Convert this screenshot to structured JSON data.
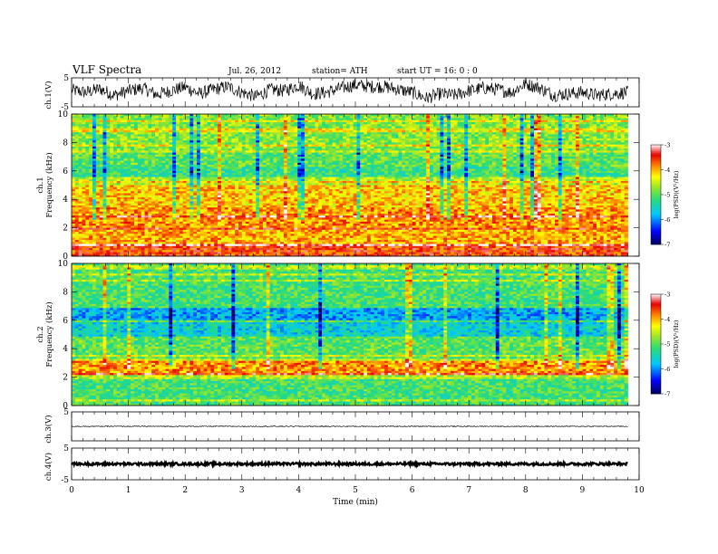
{
  "header": {
    "title": "VLF  Spectra",
    "date": "Jul.  26,  2012",
    "station": "station= ATH",
    "start": "start  UT  =    16: 0   : 0"
  },
  "chart_data": [
    {
      "type": "line",
      "name": "ch1-waveform",
      "ylabel": "ch.1(V)",
      "ylim": [
        -5,
        5
      ],
      "yticks": [
        "5",
        "-5"
      ],
      "xlim": [
        0,
        10
      ],
      "x": [
        0,
        0.25,
        0.5,
        0.75,
        1,
        1.25,
        1.5,
        1.75,
        2,
        2.25,
        2.5,
        2.75,
        3,
        3.25,
        3.5,
        3.75,
        4,
        4.25,
        4.5,
        4.75,
        5,
        5.25,
        5.5,
        5.75,
        6,
        6.25,
        6.5,
        6.75,
        7,
        7.25,
        7.5,
        7.75,
        8,
        8.25,
        8.5,
        8.75,
        9,
        9.25,
        9.5,
        9.8
      ],
      "y": [
        0.8,
        0,
        1.2,
        -1,
        0.5,
        1.5,
        -0.8,
        0.6,
        1.8,
        -0.5,
        1,
        2,
        0,
        -1.5,
        1,
        0.5,
        2.5,
        -0.5,
        0,
        1.5,
        2.5,
        2,
        2,
        1,
        0,
        -2,
        -0.5,
        -1,
        0.5,
        1.5,
        1,
        0,
        3,
        1.5,
        -1,
        -0.5,
        0,
        -1,
        -0.5,
        0
      ],
      "noise_amplitude": 2.3,
      "color": "#000000"
    },
    {
      "type": "heatmap",
      "name": "ch1-spectrogram",
      "ylabel": "ch.1\nFrequency  (kHz)",
      "xlim": [
        0,
        10
      ],
      "ylim": [
        0,
        10
      ],
      "yticks": [
        "0",
        "2",
        "4",
        "6",
        "8",
        "10"
      ],
      "data_end_min": 9.8,
      "background_bands": [
        {
          "f": [
            0,
            0.8
          ],
          "logPSD": -3.6
        },
        {
          "f": [
            0.8,
            2.0
          ],
          "logPSD": -4.0
        },
        {
          "f": [
            2.0,
            3.5
          ],
          "logPSD": -3.9
        },
        {
          "f": [
            3.5,
            5.0
          ],
          "logPSD": -4.1
        },
        {
          "f": [
            5.0,
            5.6
          ],
          "logPSD": -4.6
        },
        {
          "f": [
            5.6,
            6.3
          ],
          "logPSD": -5.2
        },
        {
          "f": [
            6.3,
            7.5
          ],
          "logPSD": -5.0
        },
        {
          "f": [
            7.5,
            10.0
          ],
          "logPSD": -4.8
        }
      ],
      "colorbar": {
        "label": "log(PSD)(V²/Hz)",
        "range": [
          -7,
          -3
        ],
        "ticks": [
          "-3",
          "-4",
          "-5",
          "-6",
          "-7"
        ]
      }
    },
    {
      "type": "heatmap",
      "name": "ch2-spectrogram",
      "ylabel": "ch.2\nFrequency  (kHz)",
      "xlim": [
        0,
        10
      ],
      "ylim": [
        0,
        10
      ],
      "yticks": [
        "0",
        "2",
        "4",
        "6",
        "8",
        "10"
      ],
      "data_end_min": 9.8,
      "background_bands": [
        {
          "f": [
            0,
            1.8
          ],
          "logPSD": -5.1
        },
        {
          "f": [
            1.8,
            2.2
          ],
          "logPSD": -4.6
        },
        {
          "f": [
            2.2,
            3.2
          ],
          "logPSD": -3.9
        },
        {
          "f": [
            3.2,
            4.8
          ],
          "logPSD": -5.0
        },
        {
          "f": [
            4.8,
            6.0
          ],
          "logPSD": -5.6
        },
        {
          "f": [
            6.0,
            6.8
          ],
          "logPSD": -5.9
        },
        {
          "f": [
            6.8,
            10.0
          ],
          "logPSD": -5.1
        }
      ],
      "colorbar": {
        "label": "log(PSD)(V²/Hz)",
        "range": [
          -7,
          -3
        ],
        "ticks": [
          "-3",
          "-4",
          "-5",
          "-6",
          "-7"
        ]
      }
    },
    {
      "type": "line",
      "name": "ch3-waveform",
      "ylabel": "ch.3(V)",
      "ylim": [
        -5,
        5
      ],
      "yticks": [
        "5"
      ],
      "xlim": [
        0,
        10
      ],
      "x": [
        0,
        9.8
      ],
      "y": [
        0,
        0
      ],
      "noise_amplitude": 0.15,
      "color": "#000000"
    },
    {
      "type": "line",
      "name": "ch4-waveform",
      "ylabel": "ch.4(V)",
      "ylim": [
        -5,
        5
      ],
      "yticks": [
        "5",
        "-5"
      ],
      "xlim": [
        0,
        10
      ],
      "xlabel": "Time  (min)",
      "xticks": [
        "0",
        "1",
        "2",
        "3",
        "4",
        "5",
        "6",
        "7",
        "8",
        "9",
        "10"
      ],
      "x": [
        0,
        9.8
      ],
      "y": [
        0,
        0
      ],
      "noise_amplitude": 0.4,
      "color": "#000000"
    }
  ]
}
